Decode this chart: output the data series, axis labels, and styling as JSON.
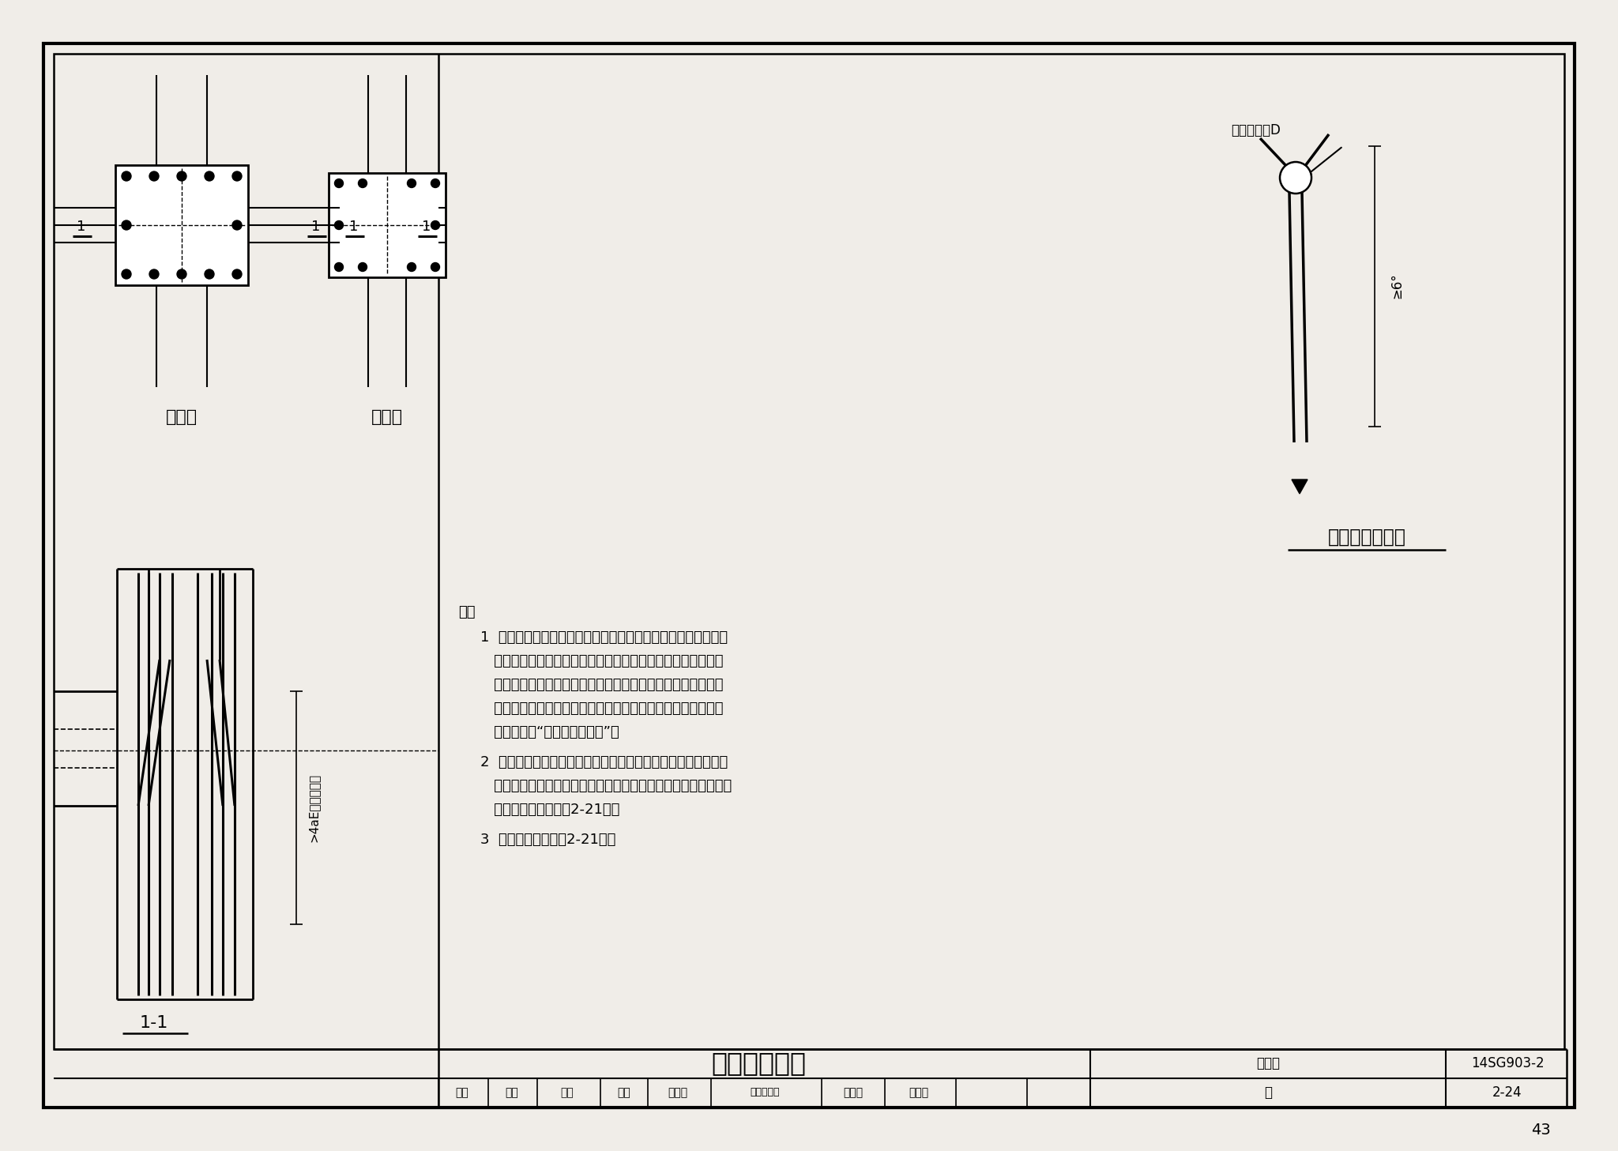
{
  "page_bg": "#f0ede8",
  "border_color": "#000000",
  "title_text": "变截面柱构造",
  "atlas_no": "14SG903-2",
  "page_no": "2-24",
  "page_num": "43",
  "lower_col_label": "下层柱",
  "upper_col_label": "上层柱",
  "bend_title": "柱纵筋弯折示意",
  "section_label": "1-1",
  "dim_label": ">4aE且伸至棁顶",
  "arc_label": "弯弧内直径D",
  "angle_label": "≥6°",
  "note_header": "注：",
  "note1_lines": [
    "1  单边收进的变截面柱，未收进边的上柱截面范围内的下层柱纵",
    "   向受力钉筋（下层钉筋直径与上层相同或比上层大）可伸至上",
    "   层或弯折伸至上层，在上层连接区段与上层柱纵向钉筋进行连",
    "   接。弯折伸至上层的钉筋应满足弯折角度及弯折钉筋内直径的",
    "   要求，见图“柱纵筋弯折示意”。"
  ],
  "note2_lines": [
    "2  下层柱多出的纵筋，可在框架梁中锁固，当梁高不满足柱纵筋",
    "   直线锁固长度时，可采用弯折锁固或机械锁固（锁固板锁固），",
    "   其构造做法见本图集2-21页。"
  ],
  "note3_lines": [
    "3  其他说明见本图集2-21页。"
  ]
}
